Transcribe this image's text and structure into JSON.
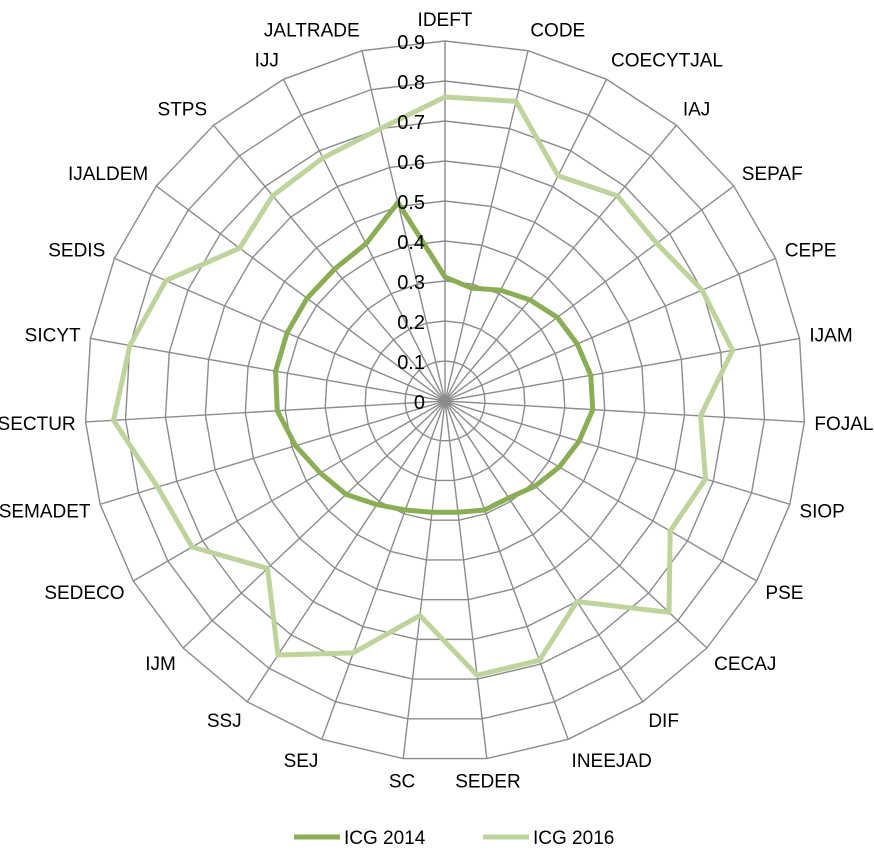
{
  "chart_data": {
    "type": "radar",
    "title": "",
    "categories": [
      "IDEFT",
      "CODE",
      "COECYTJAL",
      "IAJ",
      "SEPAF",
      "CEPE",
      "IJAM",
      "FOJAL",
      "SIOP",
      "PSE",
      "CECAJ",
      "DIF",
      "INEEJAD",
      "SEDER",
      "SC",
      "SEJ",
      "SSJ",
      "IJM",
      "SEDECO",
      "SEMADET",
      "SECTUR",
      "SICYT",
      "SEDIS",
      "IJALDEM",
      "STPS",
      "IJJ",
      "JALTRADE"
    ],
    "rlim": [
      0,
      0.9
    ],
    "ticks": [
      "0",
      "0.1",
      "0.2",
      "0.3",
      "0.4",
      "0.5",
      "0.6",
      "0.7",
      "0.8",
      "0.9"
    ],
    "grid": true,
    "legend_position": "bottom",
    "series": [
      {
        "name": "ICG 2014",
        "color": "#8aad55",
        "values": [
          0.31,
          0.29,
          0.31,
          0.33,
          0.35,
          0.36,
          0.37,
          0.37,
          0.35,
          0.33,
          0.31,
          0.29,
          0.29,
          0.28,
          0.28,
          0.29,
          0.31,
          0.34,
          0.36,
          0.39,
          0.42,
          0.43,
          0.43,
          0.43,
          0.43,
          0.44,
          0.51
        ]
      },
      {
        "name": "ICG 2016",
        "color": "#bfd49c",
        "values": [
          0.76,
          0.77,
          0.63,
          0.67,
          0.66,
          0.7,
          0.73,
          0.64,
          0.68,
          0.65,
          0.77,
          0.6,
          0.69,
          0.69,
          0.54,
          0.67,
          0.76,
          0.61,
          0.73,
          0.75,
          0.83,
          0.8,
          0.76,
          0.64,
          0.67,
          0.68,
          0.7
        ]
      }
    ]
  }
}
